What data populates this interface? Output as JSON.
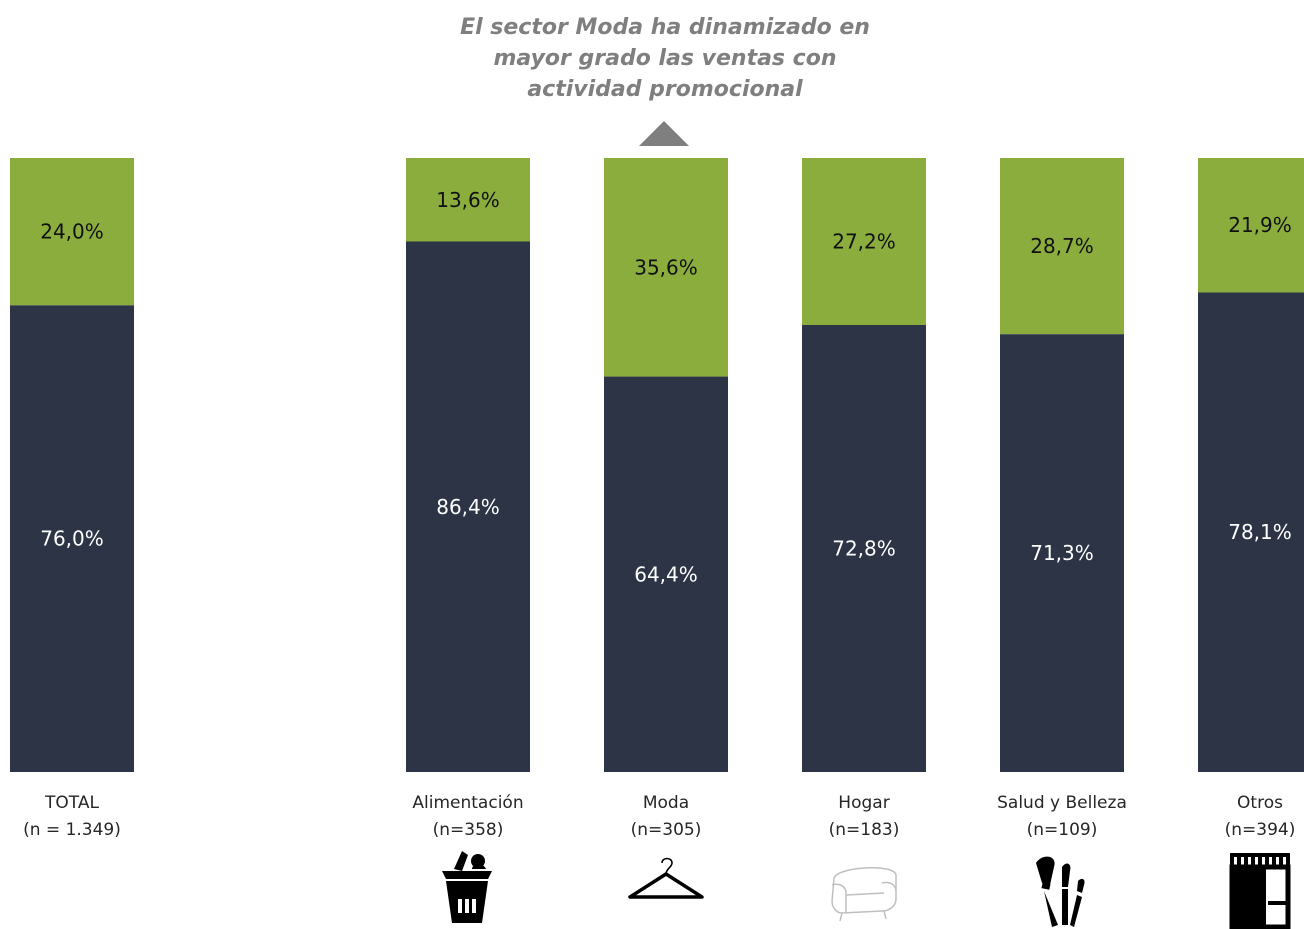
{
  "annotation": {
    "line1": "El sector Moda ha dinamizado en",
    "line2": "mayor grado las ventas con",
    "line3": "actividad promocional"
  },
  "colors": {
    "bottom": "#2c3446",
    "top": "#8aad3d",
    "annotation": "#7f7f7f"
  },
  "chart_data": {
    "type": "bar",
    "stacked": true,
    "normalized": true,
    "ylim": [
      0,
      100
    ],
    "categories": [
      "TOTAL",
      "Alimentación",
      "Moda",
      "Hogar",
      "Salud y Belleza",
      "Otros"
    ],
    "sample_sizes": [
      "(n = 1.349)",
      "(n=358)",
      "(n=305)",
      "(n=183)",
      "(n=109)",
      "(n=394)"
    ],
    "icons": [
      null,
      "shopping-basket-icon",
      "clothes-hanger-icon",
      "sofa-icon",
      "makeup-brushes-icon",
      "storefront-icon"
    ],
    "series": [
      {
        "values": [
          76.0,
          86.4,
          64.4,
          72.8,
          71.3,
          78.1
        ],
        "labels": [
          "76,0%",
          "86,4%",
          "64,4%",
          "72,8%",
          "71,3%",
          "78,1%"
        ],
        "color": "#2c3446"
      },
      {
        "values": [
          24.0,
          13.6,
          35.6,
          27.2,
          28.7,
          21.9
        ],
        "labels": [
          "24,0%",
          "13,6%",
          "35,6%",
          "27,2%",
          "28,7%",
          "21,9%"
        ],
        "color": "#8aad3d"
      }
    ],
    "grid": false,
    "legend": "none"
  }
}
